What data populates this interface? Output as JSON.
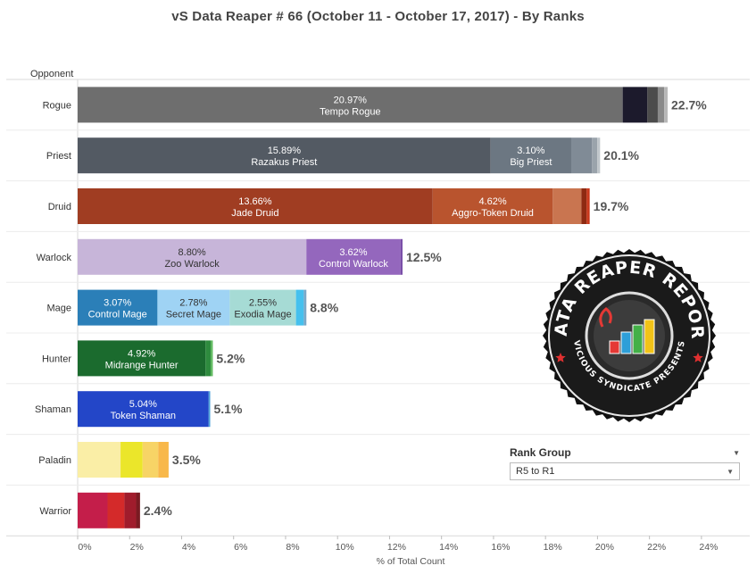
{
  "title": "vS Data Reaper #  66 (October 11 - October 17, 2017) - By Ranks",
  "logo": {
    "text_top": "DATA REAPER REPORT",
    "text_bottom": "VICIOUS SYNDICATE PRESENTS"
  },
  "filter": {
    "label": "Rank Group",
    "selected": "R5 to R1"
  },
  "chart_data": {
    "type": "bar",
    "orientation": "horizontal",
    "stacked": true,
    "title": "vS Data Reaper #  66 (October 11 - October 17, 2017) - By Ranks",
    "row_header": "Opponent",
    "xlabel": "% of Total Count",
    "xlim": [
      0,
      24
    ],
    "xticks": [
      0,
      2,
      4,
      6,
      8,
      10,
      12,
      14,
      16,
      18,
      20,
      22,
      24
    ],
    "xtick_labels": [
      "0%",
      "2%",
      "4%",
      "6%",
      "8%",
      "10%",
      "12%",
      "14%",
      "16%",
      "18%",
      "20%",
      "22%",
      "24%"
    ],
    "grid": false,
    "rows": [
      {
        "category": "Rogue",
        "total_label": "22.7%",
        "segments": [
          {
            "value": 20.97,
            "color": "#6e6e6e",
            "value_label": "20.97%",
            "archetype": "Tempo Rogue",
            "text_color": "#ffffff"
          },
          {
            "value": 0.95,
            "color": "#1c1a2c"
          },
          {
            "value": 0.4,
            "color": "#4c4c4c"
          },
          {
            "value": 0.25,
            "color": "#8a8a8a"
          },
          {
            "value": 0.13,
            "color": "#b8b8b8"
          }
        ]
      },
      {
        "category": "Priest",
        "total_label": "20.1%",
        "segments": [
          {
            "value": 15.89,
            "color": "#535a63",
            "value_label": "15.89%",
            "archetype": "Razakus Priest",
            "text_color": "#ffffff"
          },
          {
            "value": 3.1,
            "color": "#6c7782",
            "value_label": "3.10%",
            "archetype": "Big Priest",
            "text_color": "#ffffff"
          },
          {
            "value": 0.8,
            "color": "#808b96"
          },
          {
            "value": 0.2,
            "color": "#9aa3ab"
          },
          {
            "value": 0.11,
            "color": "#c0c6cb"
          }
        ]
      },
      {
        "category": "Druid",
        "total_label": "19.7%",
        "segments": [
          {
            "value": 13.66,
            "color": "#a03d22",
            "value_label": "13.66%",
            "archetype": "Jade Druid",
            "text_color": "#ffffff"
          },
          {
            "value": 4.62,
            "color": "#b9542e",
            "value_label": "4.62%",
            "archetype": "Aggro-Token Druid",
            "text_color": "#ffffff"
          },
          {
            "value": 1.1,
            "color": "#c97550"
          },
          {
            "value": 0.2,
            "color": "#8e2a12"
          },
          {
            "value": 0.12,
            "color": "#c8381c"
          }
        ]
      },
      {
        "category": "Warlock",
        "total_label": "12.5%",
        "segments": [
          {
            "value": 8.8,
            "color": "#c7b5d9",
            "value_label": "8.80%",
            "archetype": "Zoo Warlock",
            "text_color": "#333333"
          },
          {
            "value": 3.62,
            "color": "#9467bd",
            "value_label": "3.62%",
            "archetype": "Control Warlock",
            "text_color": "#ffffff"
          },
          {
            "value": 0.08,
            "color": "#7a4fa8"
          }
        ]
      },
      {
        "category": "Mage",
        "total_label": "8.8%",
        "segments": [
          {
            "value": 3.07,
            "color": "#2b7fb8",
            "value_label": "3.07%",
            "archetype": "Control Mage",
            "text_color": "#ffffff"
          },
          {
            "value": 2.78,
            "color": "#9fd3f4",
            "value_label": "2.78%",
            "archetype": "Secret Mage",
            "text_color": "#333333"
          },
          {
            "value": 2.55,
            "color": "#a6dbd5",
            "value_label": "2.55%",
            "archetype": "Exodia Mage",
            "text_color": "#333333"
          },
          {
            "value": 0.3,
            "color": "#45c0ee"
          },
          {
            "value": 0.1,
            "color": "#7aa8c8"
          }
        ]
      },
      {
        "category": "Hunter",
        "total_label": "5.2%",
        "segments": [
          {
            "value": 4.92,
            "color": "#1b6b2e",
            "value_label": "4.92%",
            "archetype": "Midrange Hunter",
            "text_color": "#ffffff"
          },
          {
            "value": 0.2,
            "color": "#2e8b3e"
          },
          {
            "value": 0.08,
            "color": "#5cb85c"
          }
        ]
      },
      {
        "category": "Shaman",
        "total_label": "5.1%",
        "segments": [
          {
            "value": 5.04,
            "color": "#2346c8",
            "value_label": "5.04%",
            "archetype": "Token Shaman",
            "text_color": "#ffffff"
          },
          {
            "value": 0.06,
            "color": "#4aa0d8"
          }
        ]
      },
      {
        "category": "Paladin",
        "total_label": "3.5%",
        "segments": [
          {
            "value": 1.65,
            "color": "#faeea6"
          },
          {
            "value": 0.85,
            "color": "#ebe62a"
          },
          {
            "value": 0.6,
            "color": "#f7d466"
          },
          {
            "value": 0.4,
            "color": "#f8b84a"
          }
        ]
      },
      {
        "category": "Warrior",
        "total_label": "2.4%",
        "segments": [
          {
            "value": 1.15,
            "color": "#c41e4a"
          },
          {
            "value": 0.65,
            "color": "#d42a2a"
          },
          {
            "value": 0.45,
            "color": "#a01c2c"
          },
          {
            "value": 0.15,
            "color": "#7a1a22"
          }
        ]
      }
    ]
  }
}
